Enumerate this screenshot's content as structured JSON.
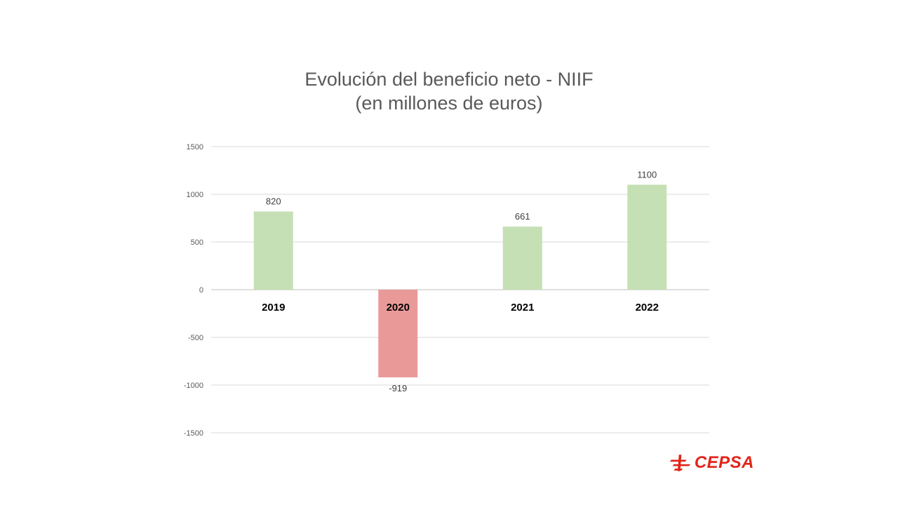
{
  "chart_data": {
    "type": "bar",
    "title": "Evolución del beneficio neto - NIIF",
    "subtitle": "(en millones de euros)",
    "categories": [
      "2019",
      "2020",
      "2021",
      "2022"
    ],
    "values": [
      820,
      -919,
      661,
      1100
    ],
    "value_labels": [
      "820",
      "-919",
      "661",
      "1100"
    ],
    "ylim": [
      -1500,
      1500
    ],
    "yticks": [
      "1500",
      "1000",
      "500",
      "0",
      "-500",
      "-1000",
      "-1500"
    ],
    "ytick_values": [
      1500,
      1000,
      500,
      0,
      -500,
      -1000,
      -1500
    ],
    "grid": true,
    "legend": "none",
    "colors": {
      "positive": "#c5e0b4",
      "negative": "#ea9999",
      "grid": "#d9d9d9",
      "axis": "#bfbfbf"
    }
  },
  "brand": {
    "logo_text": "CEPSA",
    "logo_color": "#e1251b"
  }
}
